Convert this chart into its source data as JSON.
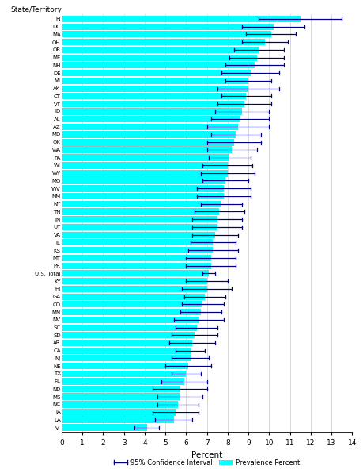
{
  "states": [
    "RI",
    "DC",
    "MA",
    "OH",
    "OR",
    "ME",
    "NH",
    "DE",
    "MI",
    "AK",
    "CT",
    "VT",
    "ID",
    "AL",
    "AZ",
    "MD",
    "OK",
    "WA",
    "PA",
    "WI",
    "WY",
    "MO",
    "WV",
    "NM",
    "NY",
    "TN",
    "IN",
    "UT",
    "VA",
    "IL",
    "KS",
    "MT",
    "PR",
    "U.S. Total",
    "KY",
    "HI",
    "GA",
    "CO",
    "MN",
    "NV",
    "SC",
    "SD",
    "AR",
    "CA",
    "NJ",
    "NE",
    "TX",
    "FL",
    "ND",
    "MS",
    "NC",
    "IA",
    "LA",
    "VI"
  ],
  "prevalence": [
    11.5,
    10.2,
    10.1,
    9.8,
    9.5,
    9.4,
    9.3,
    9.1,
    9.0,
    9.0,
    8.9,
    8.8,
    8.7,
    8.6,
    8.5,
    8.4,
    8.3,
    8.2,
    8.1,
    8.0,
    8.0,
    7.9,
    7.8,
    7.8,
    7.7,
    7.6,
    7.5,
    7.5,
    7.4,
    7.3,
    7.3,
    7.2,
    7.2,
    7.1,
    7.0,
    7.0,
    6.9,
    6.8,
    6.7,
    6.6,
    6.5,
    6.4,
    6.3,
    6.2,
    6.2,
    6.1,
    6.0,
    5.9,
    5.7,
    5.7,
    5.6,
    5.5,
    5.4,
    4.1
  ],
  "ci_lower": [
    9.5,
    8.7,
    8.9,
    8.7,
    8.3,
    8.1,
    7.9,
    7.7,
    7.9,
    7.5,
    7.7,
    7.5,
    7.4,
    7.2,
    7.0,
    7.2,
    7.0,
    7.0,
    7.1,
    6.8,
    6.7,
    6.8,
    6.5,
    6.5,
    6.7,
    6.4,
    6.3,
    6.3,
    6.3,
    6.2,
    6.1,
    6.0,
    6.0,
    6.8,
    6.0,
    5.8,
    5.9,
    5.8,
    5.7,
    5.4,
    5.5,
    5.3,
    5.2,
    5.5,
    5.3,
    5.0,
    5.3,
    4.8,
    4.4,
    4.6,
    4.6,
    4.4,
    4.5,
    3.5
  ],
  "ci_upper": [
    13.5,
    11.7,
    11.3,
    10.9,
    10.7,
    10.7,
    10.7,
    10.5,
    10.1,
    10.5,
    10.1,
    10.1,
    10.0,
    10.0,
    10.0,
    9.6,
    9.6,
    9.4,
    9.1,
    9.2,
    9.3,
    9.0,
    9.1,
    9.1,
    8.7,
    8.8,
    8.7,
    8.7,
    8.5,
    8.4,
    8.5,
    8.4,
    8.4,
    7.4,
    8.0,
    8.2,
    7.9,
    7.8,
    7.7,
    7.8,
    7.5,
    7.5,
    7.4,
    6.9,
    7.1,
    7.2,
    6.7,
    7.0,
    7.0,
    6.8,
    6.6,
    6.6,
    6.3,
    4.7
  ],
  "bar_color": "#00FFFF",
  "ci_color": "#00008B",
  "background_color": "#FFFFFF",
  "xlabel": "Percent",
  "ylabel_label": "State/Territory",
  "xlim": [
    0,
    14
  ],
  "xticks": [
    0,
    1,
    2,
    3,
    4,
    5,
    6,
    7,
    8,
    9,
    10,
    11,
    12,
    13,
    14
  ],
  "bar_height": 0.82,
  "figsize": [
    4.59,
    6.0
  ],
  "dpi": 100
}
